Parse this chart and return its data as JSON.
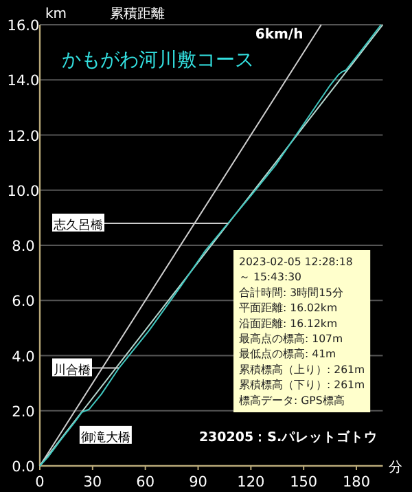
{
  "chart_data": {
    "type": "line",
    "title": "かもがわ河川敷コース",
    "subtitle": "累積距離",
    "ylabel": "km",
    "xlabel": "分",
    "xlim": [
      0,
      195
    ],
    "ylim": [
      0,
      16
    ],
    "xticks": [
      0,
      30,
      60,
      90,
      120,
      150,
      180
    ],
    "yticks": [
      {
        "value": 0,
        "label": "0.0"
      },
      {
        "value": 2,
        "label": "2.0"
      },
      {
        "value": 4,
        "label": "4.0"
      },
      {
        "value": 6,
        "label": "6.0"
      },
      {
        "value": 8,
        "label": "8.0"
      },
      {
        "value": 10,
        "label": "10.0"
      },
      {
        "value": 12,
        "label": "12.0"
      },
      {
        "value": 14,
        "label": "14.0"
      },
      {
        "value": 16,
        "label": "16.0"
      }
    ],
    "grid": "y",
    "marker": "none",
    "line_style": "solid",
    "series": [
      {
        "name": "6km/h",
        "color": "#d0d0d0",
        "x": [
          0,
          160
        ],
        "values": [
          0,
          16
        ]
      },
      {
        "color": "#b8d8d0",
        "x": [
          0,
          195
        ],
        "values": [
          0,
          16
        ]
      },
      {
        "color": "#40c8c0",
        "x": [
          0,
          5,
          12,
          20,
          24,
          26,
          28,
          35,
          45,
          62,
          80,
          94,
          107,
          120,
          134,
          150,
          165,
          170,
          172,
          174,
          182,
          194
        ],
        "values": [
          0,
          0.35,
          0.95,
          1.6,
          1.95,
          2.0,
          2.05,
          2.6,
          3.55,
          4.9,
          6.5,
          7.8,
          8.8,
          9.8,
          10.9,
          12.4,
          13.8,
          14.2,
          14.3,
          14.35,
          15.0,
          16.0
        ]
      }
    ],
    "annotations": [
      {
        "text": "志久呂橋",
        "x": 107,
        "y": 8.8
      },
      {
        "text": "川合橋",
        "x": 45,
        "y": 3.55
      },
      {
        "text": "御滝大橋",
        "x": 14,
        "y": 1.1
      },
      "2023-02-05 12:28:18",
      " ～ 15:43:30",
      "合計時間: 3時間15分",
      "平面距離: 16.02km",
      "沿面距離: 16.12km",
      "最高点の標高: 107m",
      "最低点の標高: 41m",
      "累積標高（上り）: 261m",
      "累積標高（下り）: 261m",
      "標高データ: GPS標高",
      "230205：S.パレットゴトウ"
    ]
  }
}
